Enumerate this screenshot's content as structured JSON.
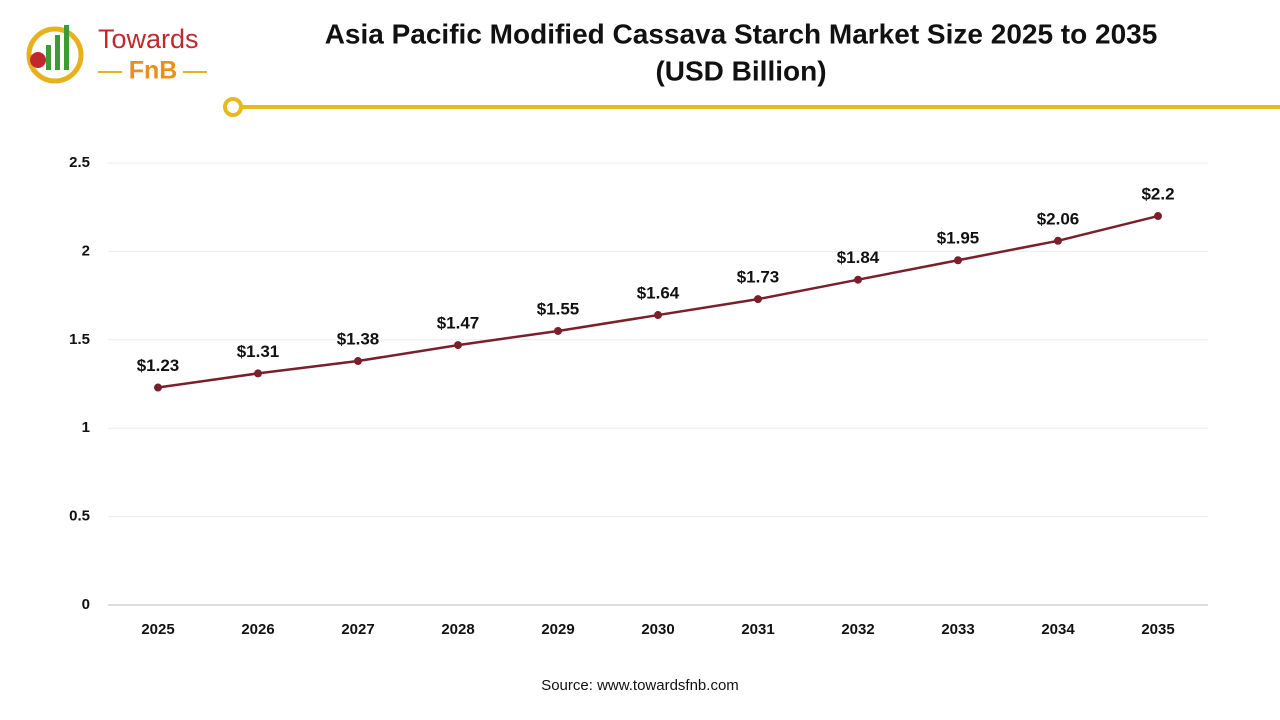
{
  "logo": {
    "name": "Towards",
    "sub": "FnB"
  },
  "chart_data": {
    "type": "line",
    "title": [
      "Asia Pacific Modified Cassava Starch Market Size 2025 to 2035",
      "(USD Billion)"
    ],
    "categories": [
      "2025",
      "2026",
      "2027",
      "2028",
      "2029",
      "2030",
      "2031",
      "2032",
      "2033",
      "2034",
      "2035"
    ],
    "series": [
      {
        "color": "#7a1f2b",
        "values": [
          1.23,
          1.31,
          1.38,
          1.47,
          1.55,
          1.64,
          1.73,
          1.84,
          1.95,
          2.06,
          2.2
        ],
        "value_labels": [
          "$1.23",
          "$1.31",
          "$1.38",
          "$1.47",
          "$1.55",
          "$1.64",
          "$1.73",
          "$1.84",
          "$1.95",
          "$2.06",
          "$2.2"
        ]
      }
    ],
    "ylim": [
      0,
      2.5
    ],
    "yticks": [
      0,
      0.5,
      1,
      1.5,
      2,
      2.5
    ],
    "grid": true,
    "source": "Source: www.towardsfnb.com"
  }
}
